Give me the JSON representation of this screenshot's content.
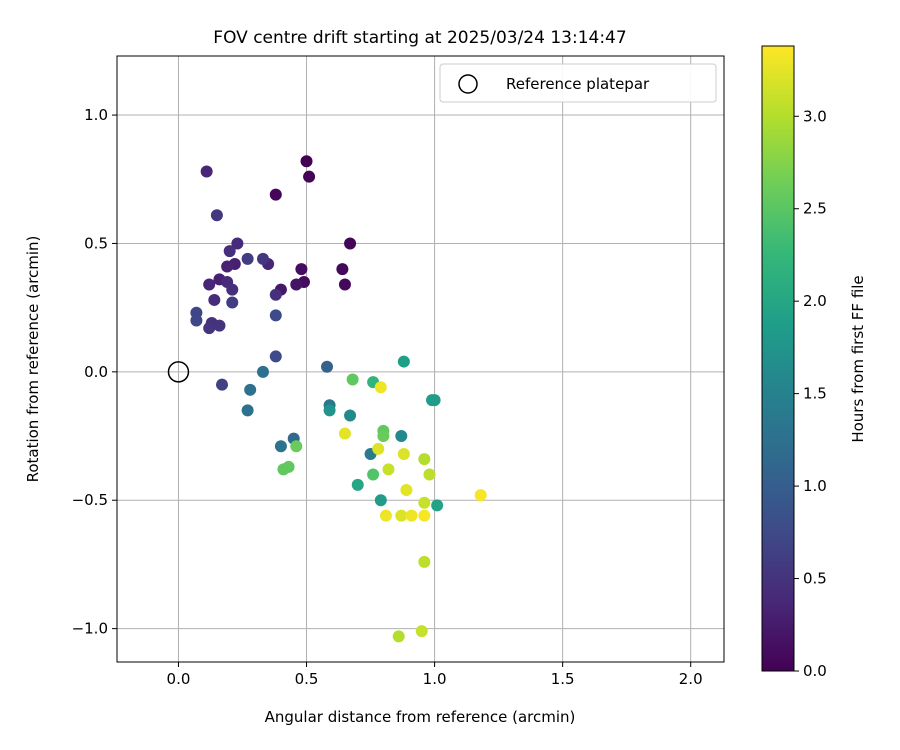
{
  "chart_data": {
    "type": "scatter",
    "title": "FOV centre drift starting at 2025/03/24 13:14:47",
    "xlabel": "Angular distance from reference (arcmin)",
    "ylabel": "Rotation from reference (arcmin)",
    "xlim": [
      -0.24,
      2.13
    ],
    "ylim": [
      -1.13,
      1.23
    ],
    "xticks": [
      0.0,
      0.5,
      1.0,
      1.5,
      2.0
    ],
    "xtick_labels": [
      "0.0",
      "0.5",
      "1.0",
      "1.5",
      "2.0"
    ],
    "yticks": [
      1.0,
      0.5,
      0.0,
      -0.5,
      -1.0
    ],
    "ytick_labels": [
      "1.0",
      "0.5",
      "0.0",
      "−0.5",
      "−1.0"
    ],
    "grid": true,
    "legend": {
      "position": "top-right",
      "entries": [
        "Reference platepar"
      ]
    },
    "reference_point": {
      "x": 0.0,
      "y": 0.0
    },
    "colorbar": {
      "label": "Hours from first FF file",
      "colormap": "viridis",
      "range": [
        0.0,
        3.38
      ],
      "ticks": [
        0.0,
        0.5,
        1.0,
        1.5,
        2.0,
        2.5,
        3.0
      ],
      "tick_labels": [
        "0.0",
        "0.5",
        "1.0",
        "1.5",
        "2.0",
        "2.5",
        "3.0"
      ]
    },
    "points": [
      {
        "x": 0.5,
        "y": 0.82,
        "c": 0.0
      },
      {
        "x": 0.51,
        "y": 0.76,
        "c": 0.03
      },
      {
        "x": 0.38,
        "y": 0.69,
        "c": 0.05
      },
      {
        "x": 0.67,
        "y": 0.5,
        "c": 0.05
      },
      {
        "x": 0.64,
        "y": 0.4,
        "c": 0.08
      },
      {
        "x": 0.65,
        "y": 0.34,
        "c": 0.08
      },
      {
        "x": 0.49,
        "y": 0.35,
        "c": 0.1
      },
      {
        "x": 0.48,
        "y": 0.4,
        "c": 0.12
      },
      {
        "x": 0.46,
        "y": 0.34,
        "c": 0.18
      },
      {
        "x": 0.4,
        "y": 0.32,
        "c": 0.22
      },
      {
        "x": 0.11,
        "y": 0.78,
        "c": 0.35
      },
      {
        "x": 0.23,
        "y": 0.5,
        "c": 0.4
      },
      {
        "x": 0.2,
        "y": 0.47,
        "c": 0.45
      },
      {
        "x": 0.35,
        "y": 0.42,
        "c": 0.35
      },
      {
        "x": 0.38,
        "y": 0.3,
        "c": 0.45
      },
      {
        "x": 0.22,
        "y": 0.42,
        "c": 0.3
      },
      {
        "x": 0.19,
        "y": 0.41,
        "c": 0.33
      },
      {
        "x": 0.16,
        "y": 0.36,
        "c": 0.3
      },
      {
        "x": 0.12,
        "y": 0.34,
        "c": 0.35
      },
      {
        "x": 0.19,
        "y": 0.35,
        "c": 0.4
      },
      {
        "x": 0.14,
        "y": 0.28,
        "c": 0.42
      },
      {
        "x": 0.21,
        "y": 0.32,
        "c": 0.45
      },
      {
        "x": 0.21,
        "y": 0.27,
        "c": 0.6
      },
      {
        "x": 0.15,
        "y": 0.61,
        "c": 0.55
      },
      {
        "x": 0.33,
        "y": 0.44,
        "c": 0.55
      },
      {
        "x": 0.27,
        "y": 0.44,
        "c": 0.6
      },
      {
        "x": 0.13,
        "y": 0.19,
        "c": 0.5
      },
      {
        "x": 0.16,
        "y": 0.18,
        "c": 0.5
      },
      {
        "x": 0.12,
        "y": 0.17,
        "c": 0.52
      },
      {
        "x": 0.07,
        "y": 0.23,
        "c": 0.7
      },
      {
        "x": 0.07,
        "y": 0.2,
        "c": 0.72
      },
      {
        "x": 0.38,
        "y": 0.22,
        "c": 0.75
      },
      {
        "x": 0.38,
        "y": 0.06,
        "c": 0.75
      },
      {
        "x": 0.17,
        "y": -0.05,
        "c": 0.65
      },
      {
        "x": 0.33,
        "y": 0.0,
        "c": 1.25
      },
      {
        "x": 0.28,
        "y": -0.07,
        "c": 1.25
      },
      {
        "x": 0.27,
        "y": -0.15,
        "c": 1.25
      },
      {
        "x": 0.4,
        "y": -0.29,
        "c": 1.3
      },
      {
        "x": 0.45,
        "y": -0.26,
        "c": 1.15
      },
      {
        "x": 0.58,
        "y": 0.02,
        "c": 1.05
      },
      {
        "x": 0.59,
        "y": -0.13,
        "c": 1.35
      },
      {
        "x": 0.59,
        "y": -0.15,
        "c": 1.75
      },
      {
        "x": 0.67,
        "y": -0.17,
        "c": 1.6
      },
      {
        "x": 0.75,
        "y": -0.32,
        "c": 1.4
      },
      {
        "x": 0.87,
        "y": -0.25,
        "c": 1.6
      },
      {
        "x": 0.88,
        "y": 0.04,
        "c": 1.9
      },
      {
        "x": 0.99,
        "y": -0.11,
        "c": 1.9
      },
      {
        "x": 1.0,
        "y": -0.11,
        "c": 1.85
      },
      {
        "x": 0.79,
        "y": -0.5,
        "c": 1.85
      },
      {
        "x": 0.7,
        "y": -0.44,
        "c": 2.0
      },
      {
        "x": 1.01,
        "y": -0.52,
        "c": 1.95
      },
      {
        "x": 0.68,
        "y": -0.03,
        "c": 2.55
      },
      {
        "x": 0.76,
        "y": -0.04,
        "c": 2.2
      },
      {
        "x": 0.76,
        "y": -0.4,
        "c": 2.45
      },
      {
        "x": 0.8,
        "y": -0.23,
        "c": 2.55
      },
      {
        "x": 0.8,
        "y": -0.25,
        "c": 2.6
      },
      {
        "x": 0.46,
        "y": -0.29,
        "c": 2.6
      },
      {
        "x": 0.43,
        "y": -0.37,
        "c": 2.55
      },
      {
        "x": 0.41,
        "y": -0.38,
        "c": 2.55
      },
      {
        "x": 0.79,
        "y": -0.06,
        "c": 3.3
      },
      {
        "x": 0.78,
        "y": -0.3,
        "c": 3.2
      },
      {
        "x": 0.65,
        "y": -0.24,
        "c": 3.25
      },
      {
        "x": 0.82,
        "y": -0.38,
        "c": 3.1
      },
      {
        "x": 0.88,
        "y": -0.32,
        "c": 3.2
      },
      {
        "x": 0.96,
        "y": -0.34,
        "c": 3.0
      },
      {
        "x": 0.98,
        "y": -0.4,
        "c": 3.05
      },
      {
        "x": 0.89,
        "y": -0.46,
        "c": 3.25
      },
      {
        "x": 0.96,
        "y": -0.51,
        "c": 3.1
      },
      {
        "x": 0.81,
        "y": -0.56,
        "c": 3.3
      },
      {
        "x": 0.87,
        "y": -0.56,
        "c": 3.2
      },
      {
        "x": 0.91,
        "y": -0.56,
        "c": 3.3
      },
      {
        "x": 0.96,
        "y": -0.56,
        "c": 3.35
      },
      {
        "x": 1.18,
        "y": -0.48,
        "c": 3.35
      },
      {
        "x": 0.96,
        "y": -0.74,
        "c": 3.05
      },
      {
        "x": 0.86,
        "y": -1.03,
        "c": 3.0
      },
      {
        "x": 0.95,
        "y": -1.01,
        "c": 3.1
      }
    ]
  }
}
